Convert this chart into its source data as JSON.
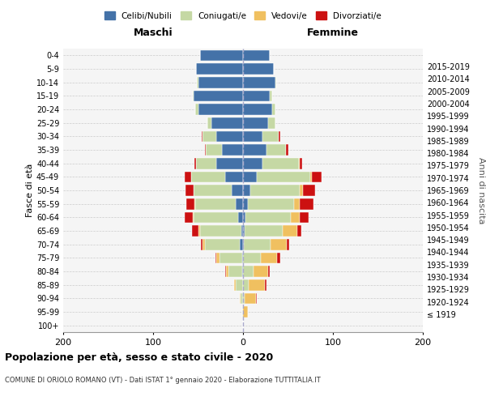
{
  "age_groups": [
    "100+",
    "95-99",
    "90-94",
    "85-89",
    "80-84",
    "75-79",
    "70-74",
    "65-69",
    "60-64",
    "55-59",
    "50-54",
    "45-49",
    "40-44",
    "35-39",
    "30-34",
    "25-29",
    "20-24",
    "15-19",
    "10-14",
    "5-9",
    "0-4"
  ],
  "birth_years": [
    "≤ 1919",
    "1920-1924",
    "1925-1929",
    "1930-1934",
    "1935-1939",
    "1940-1944",
    "1945-1949",
    "1950-1954",
    "1955-1959",
    "1960-1964",
    "1965-1969",
    "1970-1974",
    "1975-1979",
    "1980-1984",
    "1985-1989",
    "1990-1994",
    "1995-1999",
    "2000-2004",
    "2005-2009",
    "2010-2014",
    "2015-2019"
  ],
  "maschi": {
    "celibi": [
      0,
      0,
      0,
      0,
      1,
      1,
      4,
      2,
      5,
      8,
      13,
      20,
      30,
      23,
      30,
      35,
      50,
      55,
      50,
      52,
      48
    ],
    "coniugati": [
      0,
      1,
      3,
      8,
      15,
      25,
      38,
      46,
      50,
      45,
      42,
      38,
      22,
      18,
      15,
      5,
      3,
      1,
      1,
      0,
      0
    ],
    "vedovi": [
      0,
      0,
      1,
      2,
      3,
      4,
      3,
      2,
      1,
      1,
      0,
      0,
      0,
      0,
      0,
      0,
      0,
      0,
      0,
      0,
      0
    ],
    "divorziati": [
      0,
      0,
      0,
      0,
      1,
      1,
      2,
      7,
      9,
      9,
      9,
      7,
      2,
      1,
      1,
      0,
      0,
      0,
      0,
      0,
      0
    ]
  },
  "femmine": {
    "nubili": [
      0,
      0,
      0,
      0,
      0,
      0,
      1,
      2,
      3,
      5,
      8,
      15,
      22,
      26,
      22,
      28,
      32,
      30,
      36,
      34,
      30
    ],
    "coniugate": [
      0,
      0,
      2,
      6,
      12,
      20,
      30,
      42,
      50,
      52,
      55,
      60,
      40,
      22,
      18,
      8,
      4,
      2,
      1,
      0,
      0
    ],
    "vedove": [
      0,
      5,
      12,
      18,
      16,
      18,
      18,
      16,
      10,
      6,
      4,
      2,
      1,
      0,
      0,
      0,
      0,
      0,
      0,
      0,
      0
    ],
    "divorziate": [
      0,
      0,
      1,
      2,
      2,
      3,
      2,
      5,
      10,
      15,
      13,
      10,
      3,
      2,
      1,
      0,
      0,
      0,
      0,
      0,
      0
    ]
  },
  "colors": {
    "celibi": "#4472a8",
    "coniugati": "#c5d8a4",
    "vedovi": "#f0c060",
    "divorziati": "#cc1111"
  },
  "bg_color": "#f5f5f5",
  "xlim": [
    -200,
    200
  ],
  "xticks": [
    -200,
    -100,
    0,
    100,
    200
  ],
  "xtick_labels": [
    "200",
    "100",
    "0",
    "100",
    "200"
  ],
  "title": "Popolazione per età, sesso e stato civile - 2020",
  "subtitle": "COMUNE DI ORIOLO ROMANO (VT) - Dati ISTAT 1° gennaio 2020 - Elaborazione TUTTITALIA.IT",
  "ylabel_left": "Fasce di età",
  "ylabel_right": "Anni di nascita",
  "legend_labels": [
    "Celibi/Nubili",
    "Coniugati/e",
    "Vedovi/e",
    "Divorziati/e"
  ],
  "maschi_label": "Maschi",
  "femmine_label": "Femmine"
}
